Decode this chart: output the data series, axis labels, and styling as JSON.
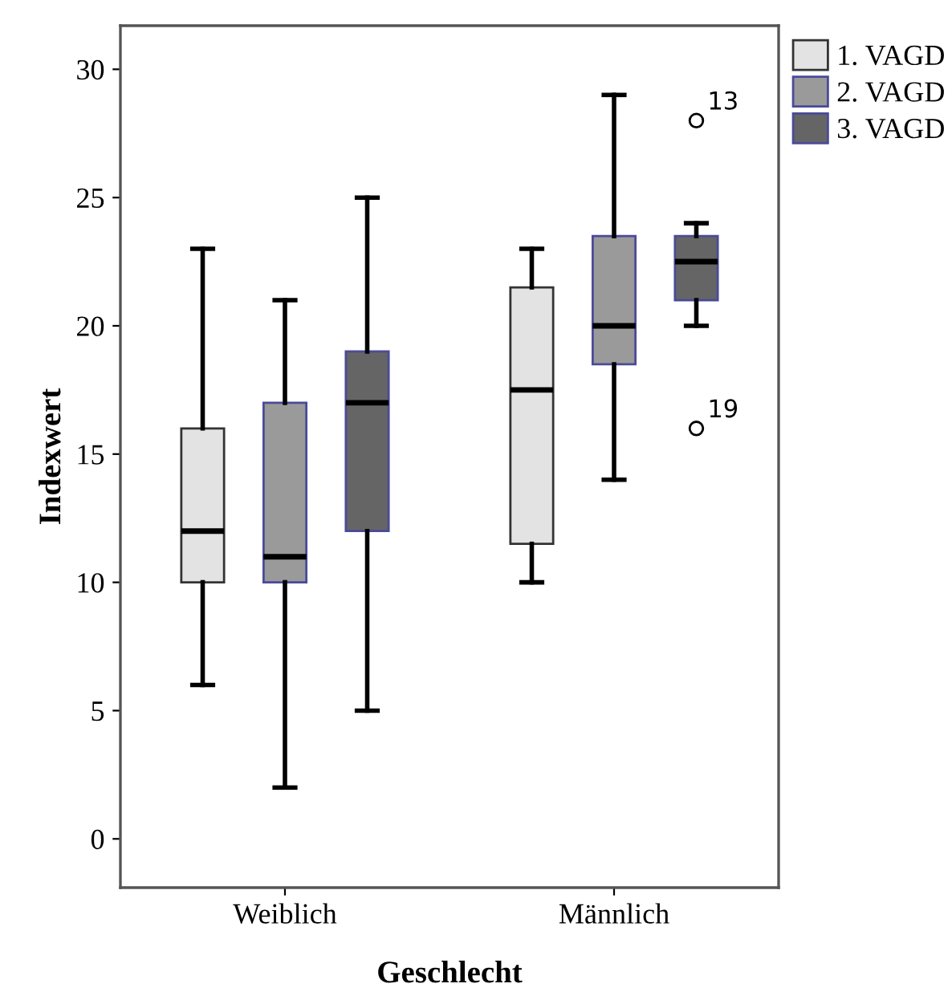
{
  "chart_data": {
    "type": "box",
    "xlabel": "Geschlecht",
    "ylabel": "Indexwert",
    "categories": [
      "Weiblich",
      "Männlich"
    ],
    "series": [
      {
        "name": "1. VAGD",
        "color": "#e3e3e3",
        "boxes": [
          {
            "low": 6,
            "q1": 10,
            "median": 12,
            "q3": 16,
            "high": 23
          },
          {
            "low": 10,
            "q1": 11.5,
            "median": 17.5,
            "q3": 21.5,
            "high": 23
          }
        ]
      },
      {
        "name": "2. VAGD",
        "color": "#9a9a9a",
        "boxes": [
          {
            "low": 2,
            "q1": 10,
            "median": 11,
            "q3": 17,
            "high": 21
          },
          {
            "low": 14,
            "q1": 18.5,
            "median": 20,
            "q3": 23.5,
            "high": 29
          }
        ]
      },
      {
        "name": "3. VAGD",
        "color": "#656565",
        "boxes": [
          {
            "low": 5,
            "q1": 12,
            "median": 17,
            "q3": 19,
            "high": 25
          },
          {
            "low": 20,
            "q1": 21,
            "median": 22.5,
            "q3": 23.5,
            "high": 24,
            "outliers": [
              28,
              16
            ]
          }
        ]
      }
    ],
    "annotations": [
      "13",
      "19"
    ],
    "ylim": [
      -1.9,
      31.7
    ],
    "yticks": [
      0,
      5,
      10,
      15,
      20,
      25,
      30
    ],
    "grid": false,
    "legend": "top right"
  }
}
